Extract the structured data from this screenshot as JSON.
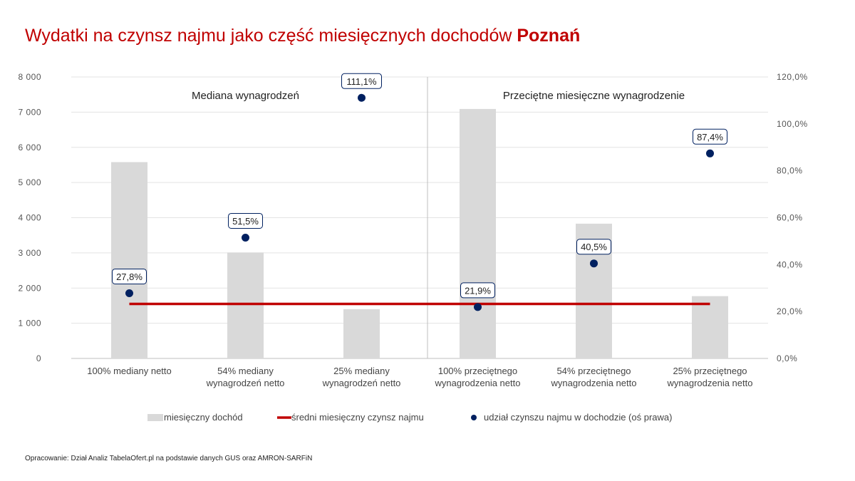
{
  "title": {
    "main": "Wydatki na czynsz najmu jako część miesięcznych dochodów ",
    "city": "Poznań"
  },
  "source": "Opracowanie: Dział Analiz TabelaOfert.pl na podstawie danych GUS oraz AMRON-SARFiN",
  "colors": {
    "bar": "#d9d9d9",
    "line": "#c00000",
    "dot": "#002060",
    "title": "#c00000"
  },
  "chart_data": {
    "type": "bar",
    "categories": [
      [
        "100% mediany netto"
      ],
      [
        "54% mediany",
        "wynagrodzeń netto"
      ],
      [
        "25% mediany",
        "wynagrodzeń netto"
      ],
      [
        "100% przeciętnego",
        "wynagrodzenia netto"
      ],
      [
        "54% przeciętnego",
        "wynagrodzenia netto"
      ],
      [
        "25% przeciętnego",
        "wynagrodzenia netto"
      ]
    ],
    "series": [
      {
        "name": "miesięczny dochód",
        "type": "bar",
        "axis": "left",
        "values": [
          5580,
          3010,
          1400,
          7090,
          3830,
          1770
        ]
      },
      {
        "name": "średni miesięczny czynsz najmu",
        "type": "line",
        "axis": "left",
        "values": [
          1550,
          1550,
          1550,
          1550,
          1550,
          1550
        ]
      },
      {
        "name": "udział czynszu najmu w dochodzie (oś prawa)",
        "type": "scatter",
        "axis": "right",
        "values": [
          27.8,
          51.5,
          111.1,
          21.9,
          40.5,
          87.4
        ],
        "labels": [
          "27,8%",
          "51,5%",
          "111,1%",
          "21,9%",
          "40,5%",
          "87,4%"
        ]
      }
    ],
    "group_labels": [
      "Mediana wynagrodzeń",
      "Przeciętne miesięczne wynagrodzenie"
    ],
    "left_axis": {
      "ylim": [
        0,
        8000
      ],
      "ticks": [
        0,
        1000,
        2000,
        3000,
        4000,
        5000,
        6000,
        7000,
        8000
      ],
      "tick_labels": [
        "0",
        "1 000",
        "2 000",
        "3 000",
        "4 000",
        "5 000",
        "6 000",
        "7 000",
        "8 000"
      ]
    },
    "right_axis": {
      "ylim": [
        0,
        120
      ],
      "ticks": [
        0,
        20,
        40,
        60,
        80,
        100,
        120
      ],
      "tick_labels": [
        "0,0%",
        "20,0%",
        "40,0%",
        "60,0%",
        "80,0%",
        "100,0%",
        "120,0%"
      ]
    },
    "grid": true,
    "legend": "bottom"
  }
}
